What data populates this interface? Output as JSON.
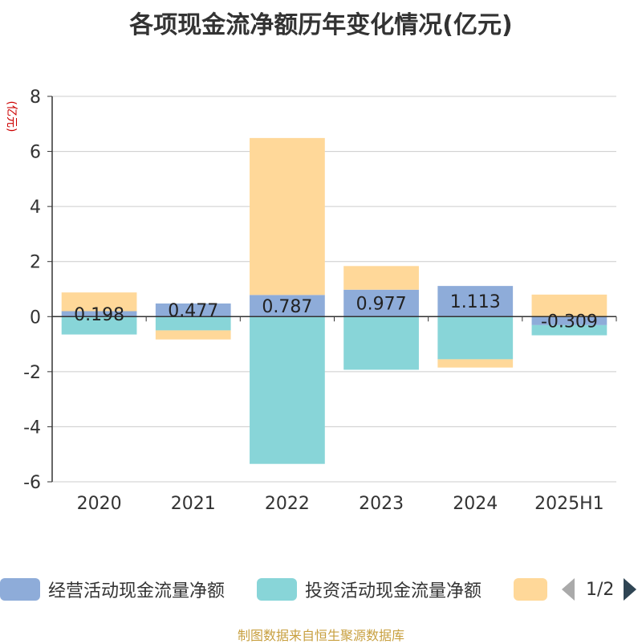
{
  "chart_data": {
    "type": "bar",
    "stacked": true,
    "title": "各项现金流净额历年变化情况(亿元)",
    "ylabel": "(亿元)",
    "xlabel": "",
    "categories": [
      "2020",
      "2021",
      "2022",
      "2023",
      "2024",
      "2025H1"
    ],
    "ylim": [
      -6,
      8
    ],
    "yticks": [
      -6,
      -4,
      -2,
      0,
      2,
      4,
      6,
      8
    ],
    "grid": true,
    "legend_position": "bottom",
    "series": [
      {
        "name": "经营活动现金流量净额",
        "color": "#8eacd9",
        "values": [
          0.198,
          0.477,
          0.787,
          0.977,
          1.113,
          -0.309
        ],
        "labels": [
          "0.198",
          "0.477",
          "0.787",
          "0.977",
          "1.113",
          "-0.309"
        ]
      },
      {
        "name": "投资活动现金流量净额",
        "color": "#88d5d8",
        "values": [
          -0.65,
          -0.5,
          -5.35,
          -1.93,
          -1.55,
          -0.37
        ]
      },
      {
        "name": "",
        "color": "#ffd899",
        "values": [
          0.68,
          -0.33,
          5.7,
          0.86,
          -0.3,
          0.8
        ]
      }
    ]
  },
  "legend": {
    "items": [
      {
        "label": "经营活动现金流量净额",
        "color": "#8eacd9"
      },
      {
        "label": "投资活动现金流量净额",
        "color": "#88d5d8"
      },
      {
        "label": "",
        "color": "#ffd899"
      }
    ],
    "page_text": "1/2"
  },
  "source": "制图数据来自恒生聚源数据库"
}
